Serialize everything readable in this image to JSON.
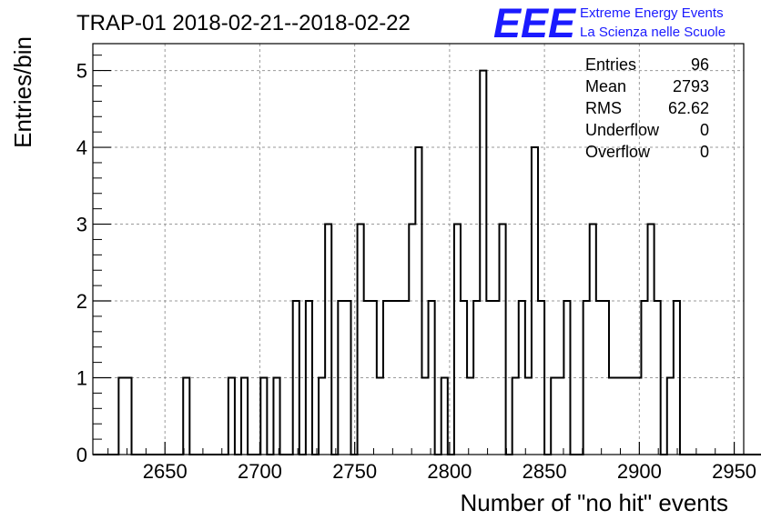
{
  "chart_data": {
    "type": "bar",
    "style": "step-histogram",
    "title": "TRAP-01 2018-02-21--2018-02-22",
    "xlabel": "Number of \"no hit\" events",
    "ylabel": "Entries/bin",
    "xlim": [
      2612,
      2955
    ],
    "ylim": [
      0,
      5.35
    ],
    "xticks": [
      2650,
      2700,
      2750,
      2800,
      2850,
      2900,
      2950
    ],
    "xtick_labels": [
      "2650",
      "2700",
      "2750",
      "2800",
      "2850",
      "2900",
      "2950"
    ],
    "yticks": [
      0,
      1,
      2,
      3,
      4,
      5
    ],
    "ytick_labels": [
      "0",
      "1",
      "2",
      "3",
      "4",
      "5"
    ],
    "grid": true,
    "legend": "none",
    "bin_width": 3.4,
    "x_start": 2612.0,
    "values": [
      0,
      0,
      0,
      0,
      1,
      1,
      0,
      0,
      0,
      0,
      0,
      0,
      0,
      0,
      1,
      0,
      0,
      0,
      0,
      0,
      0,
      1,
      0,
      1,
      0,
      0,
      1,
      0,
      1,
      0,
      0,
      2,
      0,
      2,
      0,
      1,
      3,
      0,
      2,
      2,
      0,
      3,
      2,
      2,
      1,
      2,
      2,
      2,
      2,
      3,
      4,
      1,
      2,
      0,
      1,
      0,
      3,
      2,
      1,
      2,
      5,
      2,
      2,
      3,
      0,
      1,
      2,
      1,
      4,
      2,
      0,
      1,
      1,
      2,
      0,
      0,
      2,
      3,
      2,
      2,
      1,
      1,
      1,
      1,
      1,
      2,
      3,
      2,
      0,
      1,
      2,
      0,
      0,
      0,
      0,
      0,
      0,
      0,
      0,
      0,
      0,
      0,
      0,
      0
    ],
    "histogram_color": "#000000"
  },
  "stats": {
    "rows": [
      {
        "label": "Entries",
        "value": "96"
      },
      {
        "label": "Mean",
        "value": "2793"
      },
      {
        "label": "RMS",
        "value": "62.62"
      },
      {
        "label": "Underflow",
        "value": "0"
      },
      {
        "label": "Overflow",
        "value": "0"
      }
    ]
  },
  "logo": {
    "mark": "EEE",
    "line1": "Extreme Energy Events",
    "line2": "La Scienza nelle Scuole",
    "color": "#1a1aff"
  },
  "colors": {
    "grid": "#9a9a9a",
    "axis": "#000000"
  }
}
